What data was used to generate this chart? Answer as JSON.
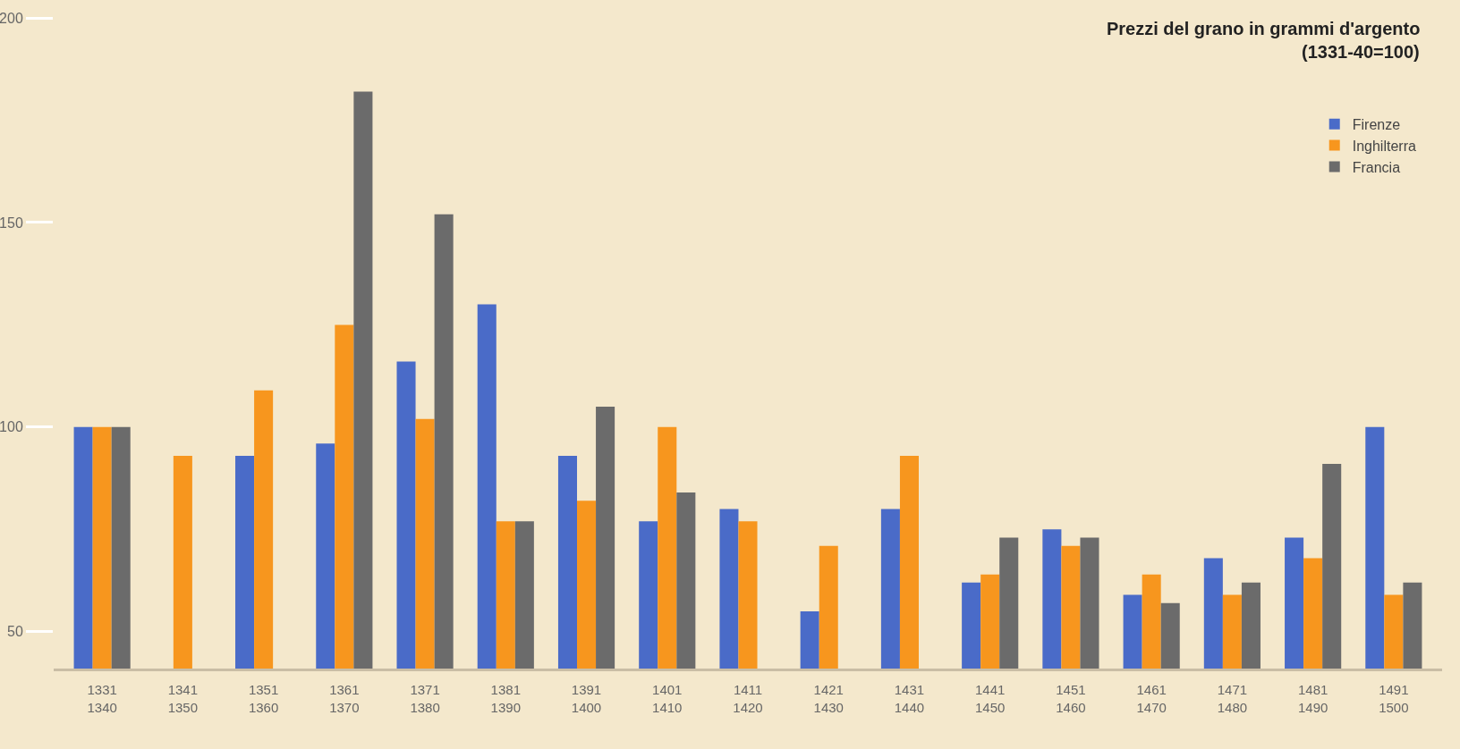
{
  "chart_data": {
    "type": "bar",
    "title": "Prezzi del grano in grammi d'argento",
    "subtitle": "(1331-40=100)",
    "categories": [
      "1331\n1340",
      "1341\n1350",
      "1351\n1360",
      "1361\n1370",
      "1371\n1380",
      "1381\n1390",
      "1391\n1400",
      "1401\n1410",
      "1411\n1420",
      "1421\n1430",
      "1431\n1440",
      "1441\n1450",
      "1451\n1460",
      "1461\n1470",
      "1471\n1480",
      "1481\n1490",
      "1491\n1500"
    ],
    "series": [
      {
        "name": "Firenze",
        "color": "#4a6bc8",
        "values": [
          100,
          null,
          93,
          96,
          116,
          130,
          93,
          77,
          80,
          55,
          80,
          62,
          75,
          59,
          68,
          73,
          100
        ]
      },
      {
        "name": "Inghilterra",
        "color": "#f7961e",
        "values": [
          100,
          93,
          109,
          125,
          102,
          77,
          82,
          100,
          77,
          71,
          93,
          64,
          71,
          64,
          59,
          68,
          59
        ]
      },
      {
        "name": "Francia",
        "color": "#6b6b6b",
        "values": [
          100,
          null,
          null,
          182,
          152,
          77,
          105,
          84,
          null,
          null,
          null,
          73,
          73,
          57,
          62,
          91,
          62
        ]
      }
    ],
    "ylim": [
      41,
      200
    ],
    "yticks": [
      50,
      100,
      150,
      200
    ],
    "grid": false,
    "legend": "top right"
  }
}
